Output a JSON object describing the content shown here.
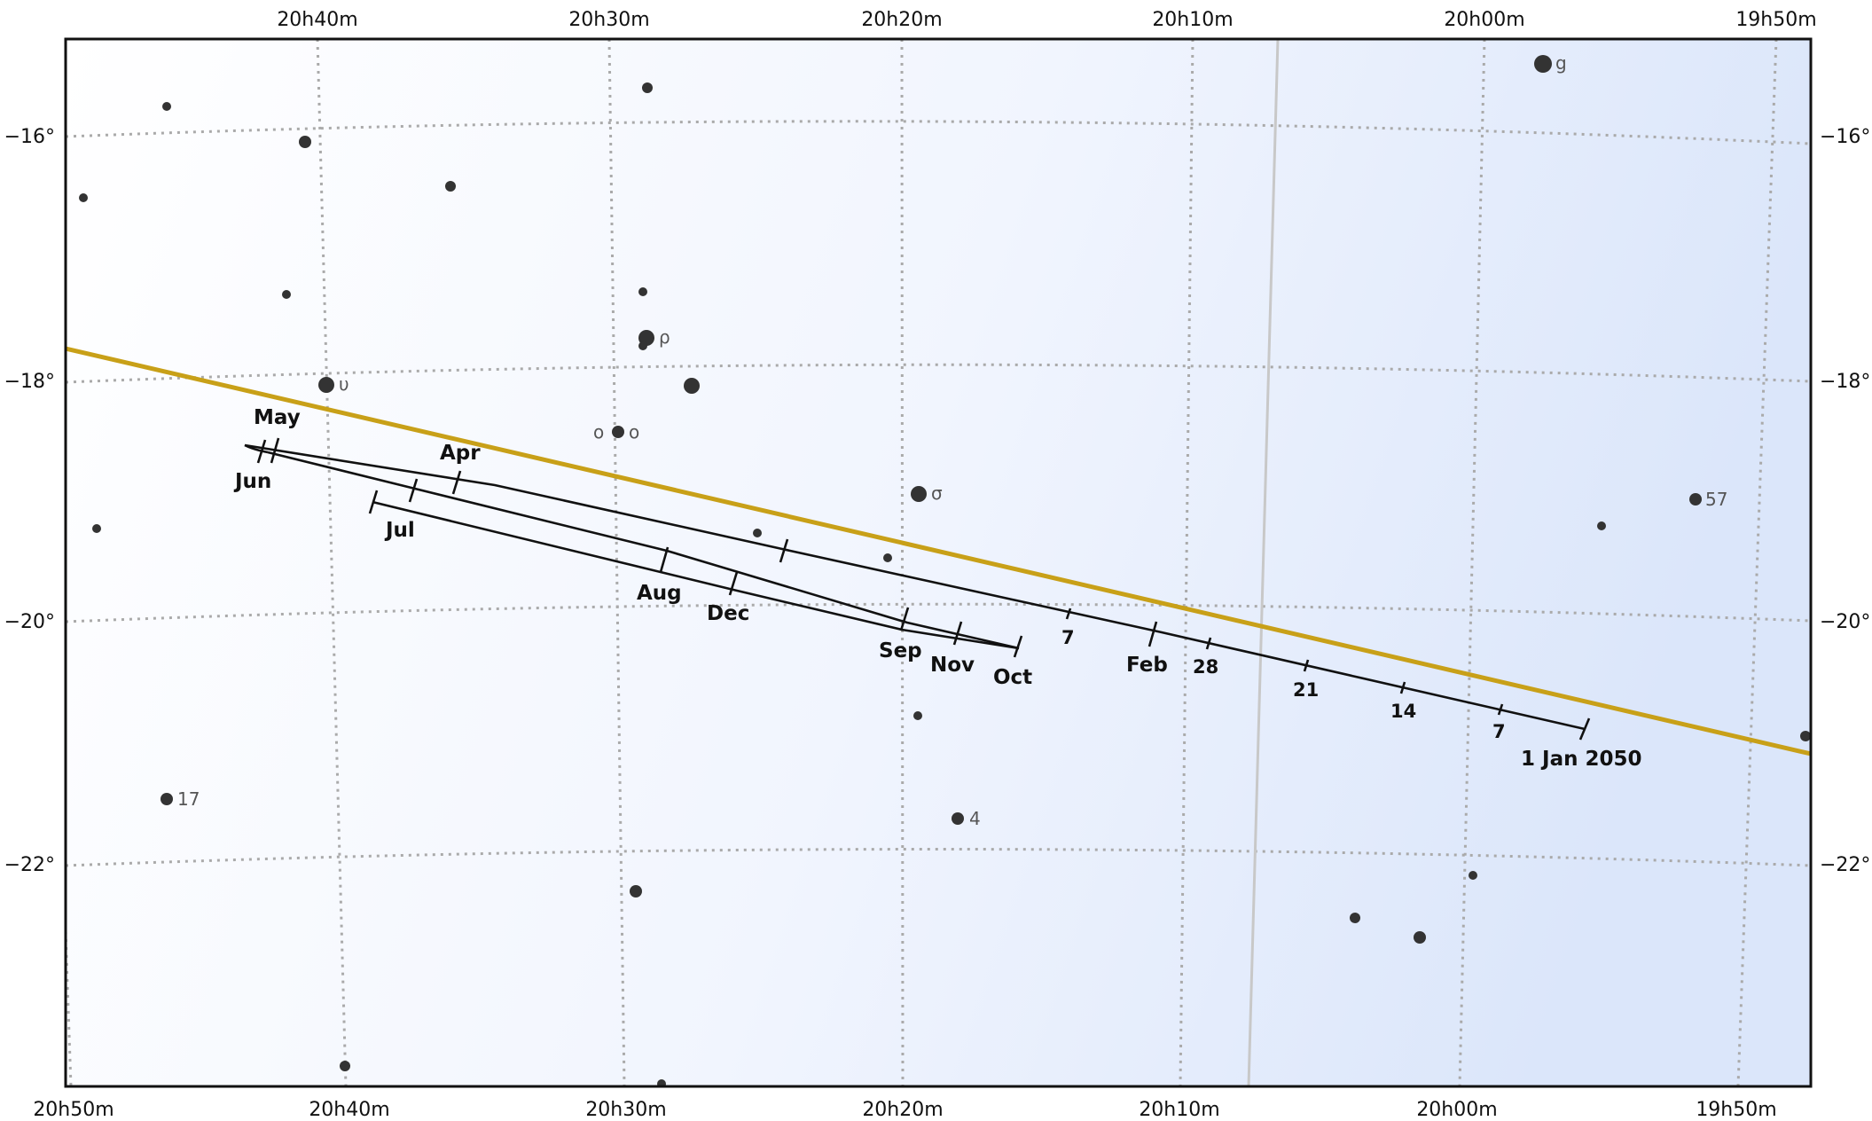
{
  "ra_labels_top": [
    "20h40m",
    "20h30m",
    "20h20m",
    "20h10m",
    "20h00m",
    "19h50m"
  ],
  "ra_labels_bottom": [
    "20h50m",
    "20h40m",
    "20h30m",
    "20h20m",
    "20h10m",
    "20h00m",
    "19h50m"
  ],
  "dec_labels": [
    "−16°",
    "−18°",
    "−20°",
    "−22°"
  ],
  "star_labels": [
    "g",
    "ρ",
    "υ",
    "ο",
    "ο",
    "σ",
    "57",
    "17",
    "4"
  ],
  "month_labels": [
    "May",
    "Jun",
    "Apr",
    "Jul",
    "Aug",
    "Dec",
    "Sep",
    "Nov",
    "Oct",
    "Feb"
  ],
  "day_labels": [
    "7",
    "28",
    "21",
    "14",
    "7"
  ],
  "start_label": "1 Jan 2050",
  "colors": {
    "ecliptic": "#c8a018",
    "grid": "#aaaaaa",
    "path": "#111111",
    "star": "#333333",
    "sky_light": "#ffffff",
    "sky_dark": "#dbe6fa",
    "galactic_line": "#c8c8c8"
  }
}
